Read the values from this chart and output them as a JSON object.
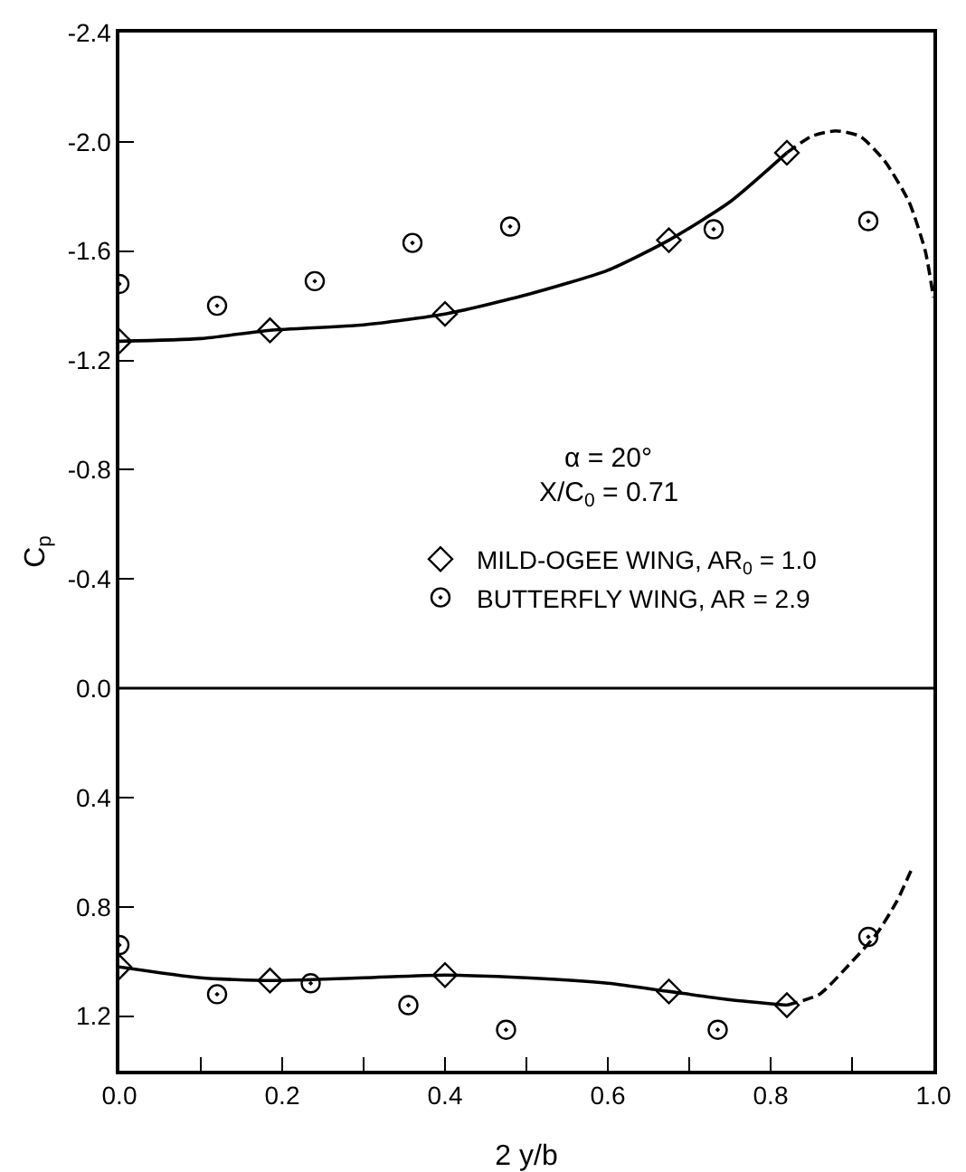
{
  "chart_data": {
    "type": "scatter",
    "xlabel": "2 y/b",
    "ylabel": "C$_{p}$",
    "annotations": [
      "α = 20°",
      "X/C$_{0}$ = 0.71"
    ],
    "xlim": [
      0,
      1.0
    ],
    "xticks": [
      {
        "value": 0,
        "label": "0.0"
      },
      {
        "value": 0.1,
        "label": null
      },
      {
        "value": 0.2,
        "label": "0.2"
      },
      {
        "value": 0.3,
        "label": null
      },
      {
        "value": 0.4,
        "label": "0.4"
      },
      {
        "value": 0.5,
        "label": null
      },
      {
        "value": 0.6,
        "label": "0.6"
      },
      {
        "value": 0.7,
        "label": null
      },
      {
        "value": 0.8,
        "label": "0.8"
      },
      {
        "value": 0.9,
        "label": null
      },
      {
        "value": 1.0,
        "label": "1.0"
      }
    ],
    "ylim": [
      1.4,
      -2.4
    ],
    "yticks": [
      {
        "value": -2.4,
        "label": "-2.4"
      },
      {
        "value": -2.0,
        "label": "-2.0"
      },
      {
        "value": -1.6,
        "label": "-1.6"
      },
      {
        "value": -1.2,
        "label": "-1.2"
      },
      {
        "value": -0.8,
        "label": "-0.8"
      },
      {
        "value": -0.4,
        "label": "-0.4"
      },
      {
        "value": 0,
        "label": "0.0"
      },
      {
        "value": 0.4,
        "label": "0.4"
      },
      {
        "value": 0.8,
        "label": "0.8"
      },
      {
        "value": 1.2,
        "label": "1.2"
      }
    ],
    "grid": false,
    "legend": "right",
    "ref_lines": [
      {
        "axis": "y",
        "value": 0,
        "color": "#000000"
      }
    ],
    "series": [
      {
        "name": "MILD-OGEE WING, AR$_{0}$ = 1.0",
        "type": "scatter",
        "marker": "diamond",
        "color": "#000000",
        "x": [
          0,
          0.185,
          0.4,
          0.675,
          0.82
        ],
        "values": [
          -1.27,
          -1.31,
          -1.37,
          -1.64,
          -1.96
        ]
      },
      {
        "name": "BUTTERFLY WING, AR = 2.9",
        "type": "scatter",
        "marker": "circle",
        "color": "#000000",
        "x": [
          0,
          0.12,
          0.24,
          0.36,
          0.48,
          0.73,
          0.92
        ],
        "values": [
          -1.48,
          -1.4,
          -1.49,
          -1.63,
          -1.69,
          -1.68,
          -1.71
        ]
      },
      {
        "type": "line",
        "line_style": "solid",
        "marker": "none",
        "color": "#000000",
        "x": [
          0,
          0.1,
          0.185,
          0.3,
          0.4,
          0.5,
          0.6,
          0.675,
          0.75,
          0.82
        ],
        "values": [
          -1.27,
          -1.28,
          -1.31,
          -1.33,
          -1.37,
          -1.44,
          -1.53,
          -1.64,
          -1.78,
          -1.96
        ]
      },
      {
        "type": "line",
        "line_style": "dashed",
        "marker": "none",
        "color": "#000000",
        "x": [
          0.82,
          0.85,
          0.88,
          0.91,
          0.94,
          0.97,
          0.99,
          1.0
        ],
        "values": [
          -1.96,
          -2.02,
          -2.04,
          -2.02,
          -1.93,
          -1.78,
          -1.6,
          -1.43
        ]
      },
      {
        "type": "scatter",
        "marker": "diamond",
        "color": "#000000",
        "x": [
          0,
          0.185,
          0.4,
          0.675,
          0.82
        ],
        "values": [
          1.02,
          1.07,
          1.05,
          1.11,
          1.16
        ]
      },
      {
        "type": "scatter",
        "marker": "circle",
        "color": "#000000",
        "x": [
          0,
          0.12,
          0.235,
          0.355,
          0.475,
          0.735,
          0.92
        ],
        "values": [
          0.94,
          1.12,
          1.08,
          1.16,
          1.25,
          1.25,
          0.91
        ]
      },
      {
        "type": "line",
        "line_style": "solid",
        "marker": "none",
        "color": "#000000",
        "x": [
          0,
          0.1,
          0.185,
          0.3,
          0.4,
          0.5,
          0.6,
          0.675,
          0.75,
          0.82
        ],
        "values": [
          1.02,
          1.06,
          1.07,
          1.06,
          1.05,
          1.06,
          1.08,
          1.11,
          1.14,
          1.16
        ]
      },
      {
        "type": "line",
        "line_style": "dashed",
        "marker": "none",
        "color": "#000000",
        "x": [
          0.82,
          0.86,
          0.9,
          0.93,
          0.955,
          0.975
        ],
        "values": [
          1.16,
          1.12,
          1.0,
          0.9,
          0.78,
          0.65
        ]
      }
    ]
  }
}
